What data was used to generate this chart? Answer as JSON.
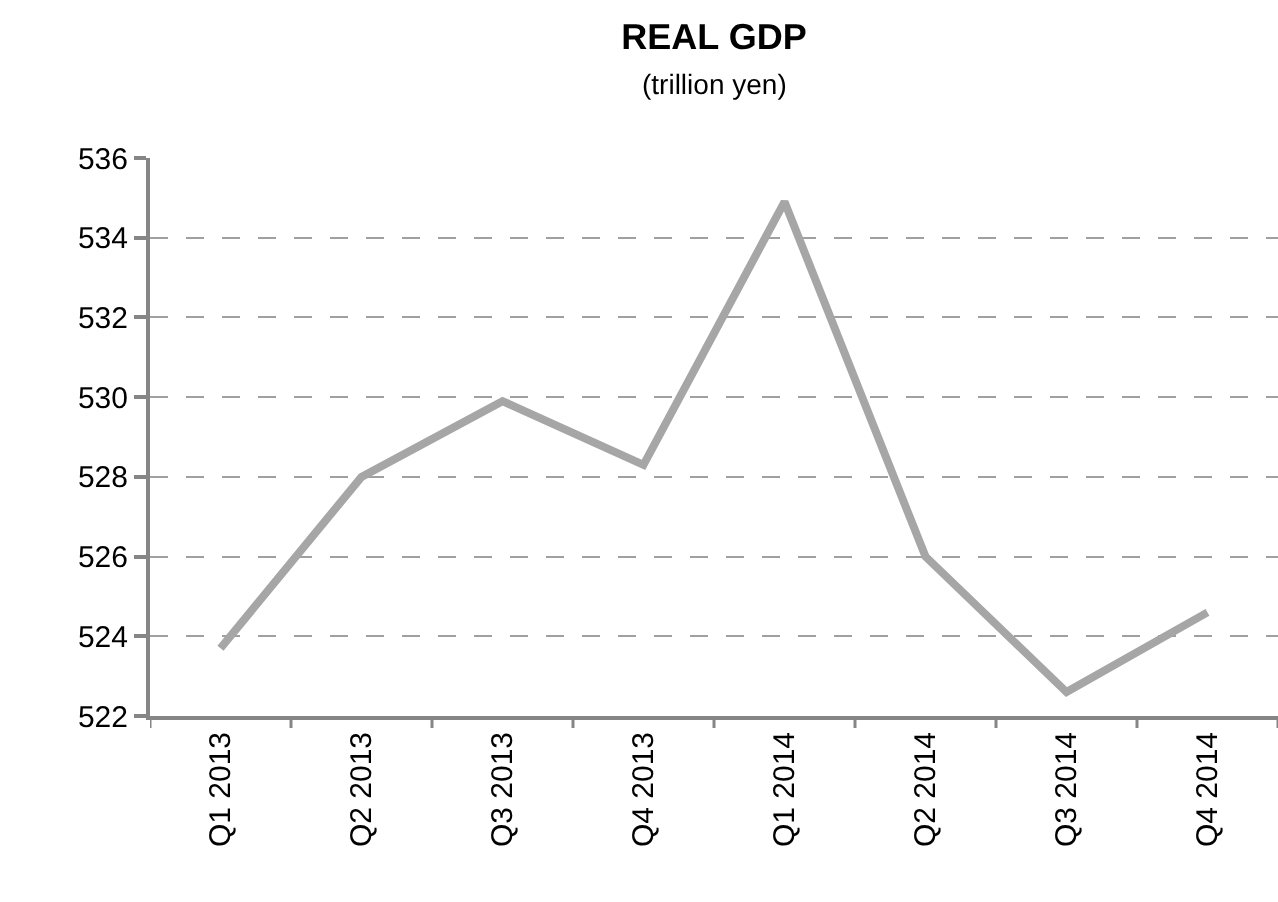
{
  "chart_data": {
    "type": "line",
    "title": "REAL GDP",
    "subtitle": "(trillion yen)",
    "categories": [
      "Q1 2013",
      "Q2 2013",
      "Q3 2013",
      "Q4 2013",
      "Q1 2014",
      "Q2 2014",
      "Q3 2014",
      "Q4 2014"
    ],
    "series": [
      {
        "color": "#a6a6a6",
        "values": [
          523.7,
          528.0,
          529.9,
          528.3,
          534.9,
          526.0,
          522.6,
          524.6
        ]
      }
    ],
    "ylim": [
      522,
      536
    ],
    "yticks": [
      522,
      524,
      526,
      528,
      530,
      532,
      534,
      536
    ],
    "grid": "y",
    "line_style": "solid"
  }
}
